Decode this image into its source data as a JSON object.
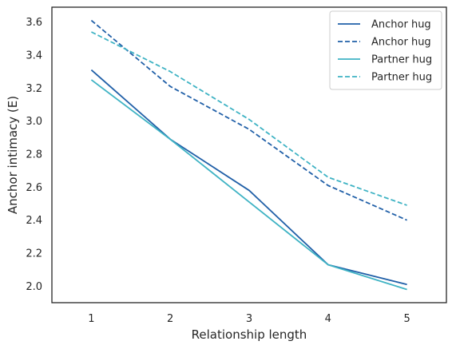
{
  "chart_data": {
    "type": "line",
    "title": "",
    "xlabel": "Relationship length",
    "ylabel": "Anchor intimacy (E)",
    "xlim": [
      0.5,
      5.5
    ],
    "ylim": [
      1.9,
      3.69
    ],
    "xticks": [
      1,
      2,
      3,
      4,
      5
    ],
    "yticks": [
      2.0,
      2.2,
      2.4,
      2.6,
      2.8,
      3.0,
      3.2,
      3.4,
      3.6
    ],
    "grid": false,
    "legend_position": "top-right",
    "x": [
      1,
      2,
      3,
      4,
      5
    ],
    "series": [
      {
        "name": "Anchor hug",
        "color": "#2160a8",
        "dash": "solid",
        "values": [
          3.31,
          2.89,
          2.58,
          2.13,
          2.01
        ]
      },
      {
        "name": "Anchor hug",
        "color": "#2160a8",
        "dash": "dashed",
        "values": [
          3.61,
          3.21,
          2.95,
          2.61,
          2.4
        ]
      },
      {
        "name": "Partner hug",
        "color": "#3fb3c4",
        "dash": "solid",
        "values": [
          3.25,
          2.89,
          2.51,
          2.13,
          1.98
        ]
      },
      {
        "name": "Partner hug",
        "color": "#3fb3c4",
        "dash": "dashed",
        "values": [
          3.54,
          3.3,
          3.01,
          2.66,
          2.49
        ]
      }
    ]
  }
}
